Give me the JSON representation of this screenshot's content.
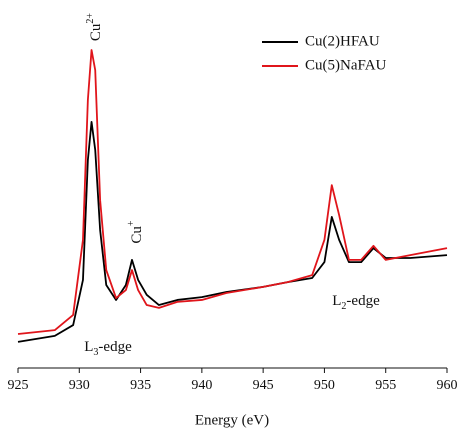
{
  "chart_data": {
    "type": "line",
    "x_label": "Energy (eV)",
    "x": [
      925,
      928,
      929.5,
      930.3,
      930.7,
      931,
      931.3,
      931.7,
      932.2,
      933,
      933.8,
      934.3,
      934.8,
      935.5,
      936.5,
      938,
      940,
      942,
      945,
      947,
      949,
      950,
      950.6,
      951.2,
      952,
      953,
      954,
      955,
      957,
      960
    ],
    "series": [
      {
        "name": "Cu(2)HFAU",
        "color": "#000000",
        "values": [
          0.082,
          0.101,
          0.135,
          0.277,
          0.654,
          0.774,
          0.686,
          0.434,
          0.261,
          0.214,
          0.261,
          0.34,
          0.277,
          0.23,
          0.198,
          0.214,
          0.223,
          0.239,
          0.255,
          0.27,
          0.283,
          0.333,
          0.475,
          0.403,
          0.333,
          0.333,
          0.377,
          0.346,
          0.346,
          0.355
        ]
      },
      {
        "name": "Cu(5)NaFAU",
        "color": "#e0151b",
        "values": [
          0.107,
          0.119,
          0.167,
          0.403,
          0.843,
          1.0,
          0.937,
          0.528,
          0.308,
          0.22,
          0.245,
          0.308,
          0.245,
          0.198,
          0.189,
          0.208,
          0.214,
          0.236,
          0.255,
          0.27,
          0.292,
          0.403,
          0.575,
          0.481,
          0.34,
          0.34,
          0.384,
          0.34,
          0.355,
          0.377
        ]
      }
    ],
    "xlim": [
      925,
      960
    ],
    "xticks": [
      925,
      930,
      935,
      940,
      945,
      950,
      955,
      960
    ],
    "ylim": [
      0,
      1
    ],
    "legend": "upper right",
    "annotations": [
      {
        "base": "Cu",
        "sup": "2+"
      },
      {
        "base": "Cu",
        "sup": "+"
      },
      {
        "base": "L",
        "sub": "3",
        "rest": "-edge"
      },
      {
        "base": "L",
        "sub": "2",
        "rest": "-edge"
      }
    ]
  }
}
